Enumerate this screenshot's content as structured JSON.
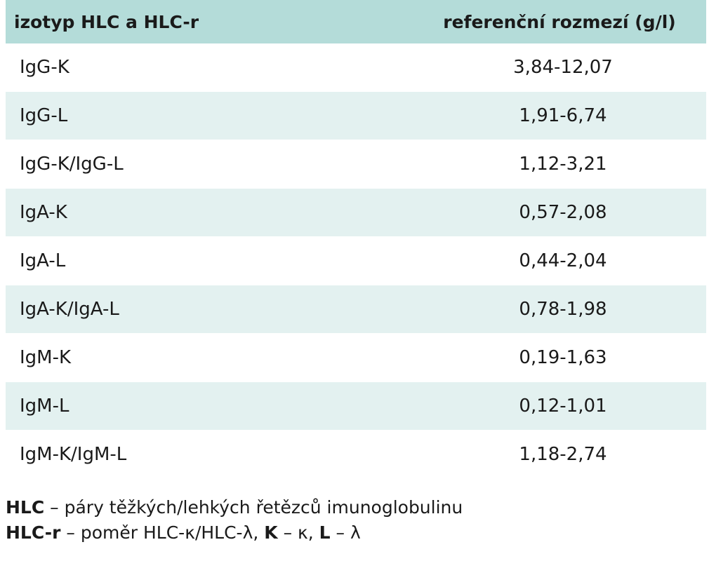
{
  "table": {
    "headers": [
      "izotyp HLC a HLC-r",
      "referenční rozmezí (g/l)"
    ],
    "rows": [
      [
        "IgG-K",
        "3,84-12,07"
      ],
      [
        "IgG-L",
        "1,91-6,74"
      ],
      [
        "IgG-K/IgG-L",
        "1,12-3,21"
      ],
      [
        "IgA-K",
        "0,57-2,08"
      ],
      [
        "IgA-L",
        "0,44-2,04"
      ],
      [
        "IgA-K/IgA-L",
        "0,78-1,98"
      ],
      [
        "IgM-K",
        "0,19-1,63"
      ],
      [
        "IgM-L",
        "0,12-1,01"
      ],
      [
        "IgM-K/IgM-L",
        "1,18-2,74"
      ]
    ],
    "colors": {
      "header_bg": "#b4dcd9",
      "stripe_bg": "#e3f1f0"
    }
  },
  "legend": {
    "line1": {
      "term": "HLC",
      "text": " – páry těžkých/lehkých řetězců imunoglobulinu"
    },
    "line2": {
      "term": "HLC-r",
      "text1": " – poměr HLC-κ/HLC-λ, ",
      "k_term": "K",
      "k_text": " – κ, ",
      "l_term": "L",
      "l_text": " – λ"
    }
  }
}
